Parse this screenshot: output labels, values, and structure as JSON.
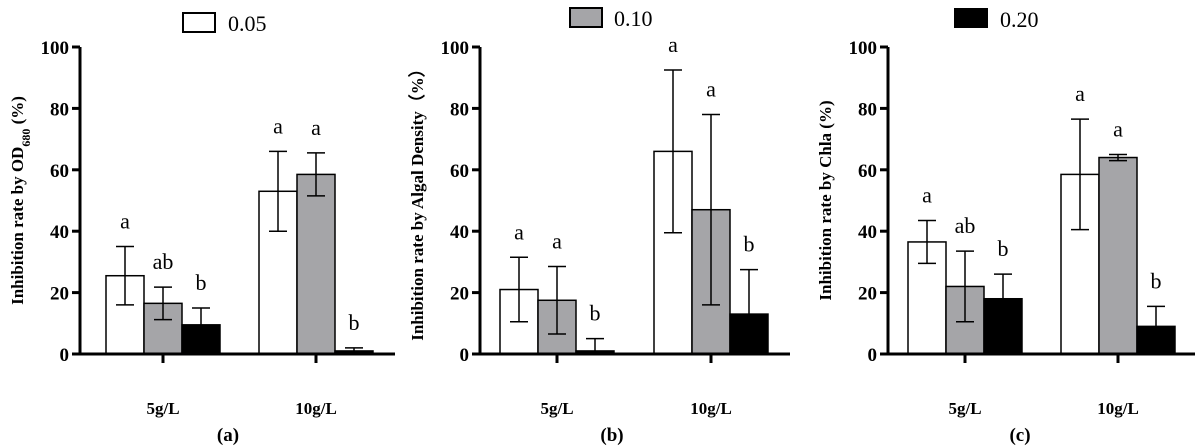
{
  "colors": {
    "0.05": "#ffffff",
    "0.10": "#a5a5a8",
    "0.20": "#000000"
  },
  "legend": [
    "0.05",
    "0.10",
    "0.20"
  ],
  "chart_data": [
    {
      "type": "bar",
      "caption": "(a)",
      "ylabel": "Inhibition rate by OD680 (%)",
      "ylabel_parts": [
        "Inhibition rate by OD",
        "680",
        " (%)"
      ],
      "ylim": [
        0,
        100
      ],
      "yticks": [
        "0",
        "20",
        "40",
        "60",
        "80",
        "100"
      ],
      "categories": [
        "5g/L",
        "10g/L"
      ],
      "series": [
        {
          "name": "0.05",
          "values": [
            25.5,
            53
          ],
          "errors": [
            9.5,
            13
          ],
          "letters": [
            "a",
            "a"
          ]
        },
        {
          "name": "0.10",
          "values": [
            16.5,
            58.5
          ],
          "errors": [
            5.3,
            7
          ],
          "letters": [
            "ab",
            "a"
          ]
        },
        {
          "name": "0.20",
          "values": [
            9.5,
            1
          ],
          "errors": [
            5.5,
            1
          ],
          "letters": [
            "b",
            "b"
          ]
        }
      ]
    },
    {
      "type": "bar",
      "caption": "(b)",
      "ylabel": "Inhibition rate by Algal Density（%）",
      "ylabel_parts": [
        "Inhibition rate by Algal Density（%）",
        "",
        ""
      ],
      "ylim": [
        0,
        100
      ],
      "yticks": [
        "0",
        "20",
        "40",
        "60",
        "80",
        "100"
      ],
      "categories": [
        "5g/L",
        "10g/L"
      ],
      "series": [
        {
          "name": "0.05",
          "values": [
            21,
            66
          ],
          "errors": [
            10.5,
            26.5
          ],
          "letters": [
            "a",
            "a"
          ]
        },
        {
          "name": "0.10",
          "values": [
            17.5,
            47
          ],
          "errors": [
            11,
            31
          ],
          "letters": [
            "a",
            "a"
          ]
        },
        {
          "name": "0.20",
          "values": [
            1,
            13
          ],
          "errors": [
            4,
            14.5
          ],
          "letters": [
            "b",
            "b"
          ]
        }
      ]
    },
    {
      "type": "bar",
      "caption": "(c)",
      "ylabel": "Inhibition rate by Chla (%)",
      "ylabel_parts": [
        "Inhibition rate by Chla (%)",
        "",
        ""
      ],
      "ylim": [
        0,
        100
      ],
      "yticks": [
        "0",
        "20",
        "40",
        "60",
        "80",
        "100"
      ],
      "categories": [
        "5g/L",
        "10g/L"
      ],
      "series": [
        {
          "name": "0.05",
          "values": [
            36.5,
            58.5
          ],
          "errors": [
            7,
            18
          ],
          "letters": [
            "a",
            "a"
          ]
        },
        {
          "name": "0.10",
          "values": [
            22,
            64
          ],
          "errors": [
            11.5,
            1
          ],
          "letters": [
            "ab",
            "a"
          ]
        },
        {
          "name": "0.20",
          "values": [
            18,
            9
          ],
          "errors": [
            8,
            6.5
          ],
          "letters": [
            "b",
            "b"
          ]
        }
      ]
    }
  ]
}
